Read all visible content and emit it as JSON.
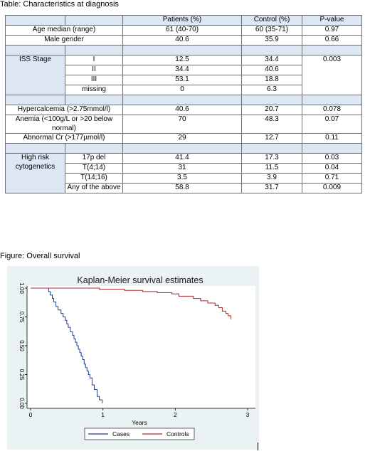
{
  "table_caption": "Table: Characteristics at diagnosis",
  "figure_caption": "Figure: Overall survival",
  "table": {
    "headers": [
      "",
      "",
      "Patients (%)",
      "Control (%)",
      "P-value"
    ],
    "age": {
      "label": "Age median (range)",
      "patients": "61 (40-70)",
      "control": "60 (35-71)",
      "p": "0.97"
    },
    "male": {
      "label": "Male gender",
      "patients": "40.6",
      "control": "35.9",
      "p": "0.66"
    },
    "iss": {
      "label": "ISS Stage",
      "p": "0.003",
      "rows": [
        {
          "sub": "I",
          "patients": "12.5",
          "control": "34.4"
        },
        {
          "sub": "II",
          "patients": "34.4",
          "control": "40.6"
        },
        {
          "sub": "III",
          "patients": "53.1",
          "control": "18.8"
        },
        {
          "sub": "missing",
          "patients": "0",
          "control": "6.3"
        }
      ]
    },
    "hypercalcemia": {
      "label": "Hypercalcemia (>2.75mmol/l)",
      "patients": "40.6",
      "control": "20.7",
      "p": "0.078"
    },
    "anemia": {
      "label": "Anemia (<100g/L or >20 below normal)",
      "patients": "70",
      "control": "48.3",
      "p": "0.07"
    },
    "cr": {
      "label": "Abnormal Cr (>177µmol/l)",
      "patients": "29",
      "control": "12.7",
      "p": "0.11"
    },
    "cyto": {
      "label": "High risk cytogenetics",
      "rows": [
        {
          "sub": "17p del",
          "patients": "41.4",
          "control": "17.3",
          "p": "0.03"
        },
        {
          "sub": "T(4;14)",
          "patients": "31",
          "control": "11.5",
          "p": "0.04"
        },
        {
          "sub": "T(14;16)",
          "patients": "3.5",
          "control": "3.9",
          "p": "0.71"
        },
        {
          "sub": "Any of the above",
          "patients": "58.8",
          "control": "31.7",
          "p": "0.009"
        }
      ]
    }
  },
  "chart_data": {
    "type": "line",
    "title": "Kaplan-Meier survival estimates",
    "xlabel": "Years",
    "ylabel": "",
    "xlim": [
      0,
      3
    ],
    "ylim": [
      0,
      1
    ],
    "xticks": [
      "0",
      "1",
      "2",
      "3"
    ],
    "yticks": [
      "0.00",
      "0.25",
      "0.50",
      "0.75",
      "1.00"
    ],
    "legend_position": "bottom",
    "series": [
      {
        "name": "Cases",
        "color": "#1f3f8f",
        "x": [
          0,
          0.25,
          0.27,
          0.3,
          0.32,
          0.35,
          0.38,
          0.42,
          0.45,
          0.48,
          0.5,
          0.52,
          0.55,
          0.58,
          0.6,
          0.62,
          0.64,
          0.66,
          0.68,
          0.7,
          0.72,
          0.74,
          0.76,
          0.78,
          0.8,
          0.82,
          0.85,
          0.88,
          0.92,
          0.95,
          0.99
        ],
        "y": [
          1.0,
          0.97,
          0.94,
          0.91,
          0.88,
          0.84,
          0.81,
          0.78,
          0.75,
          0.72,
          0.69,
          0.66,
          0.62,
          0.59,
          0.56,
          0.53,
          0.5,
          0.47,
          0.44,
          0.41,
          0.38,
          0.34,
          0.31,
          0.28,
          0.25,
          0.22,
          0.16,
          0.12,
          0.06,
          0.03,
          0.0
        ]
      },
      {
        "name": "Controls",
        "color": "#a52a2a",
        "x": [
          0,
          0.95,
          1.3,
          1.55,
          1.75,
          1.95,
          2.05,
          2.25,
          2.35,
          2.45,
          2.55,
          2.6,
          2.65,
          2.7,
          2.73,
          2.77
        ],
        "y": [
          1.0,
          0.99,
          0.98,
          0.97,
          0.96,
          0.95,
          0.93,
          0.91,
          0.89,
          0.87,
          0.85,
          0.83,
          0.8,
          0.78,
          0.76,
          0.73
        ]
      }
    ]
  }
}
